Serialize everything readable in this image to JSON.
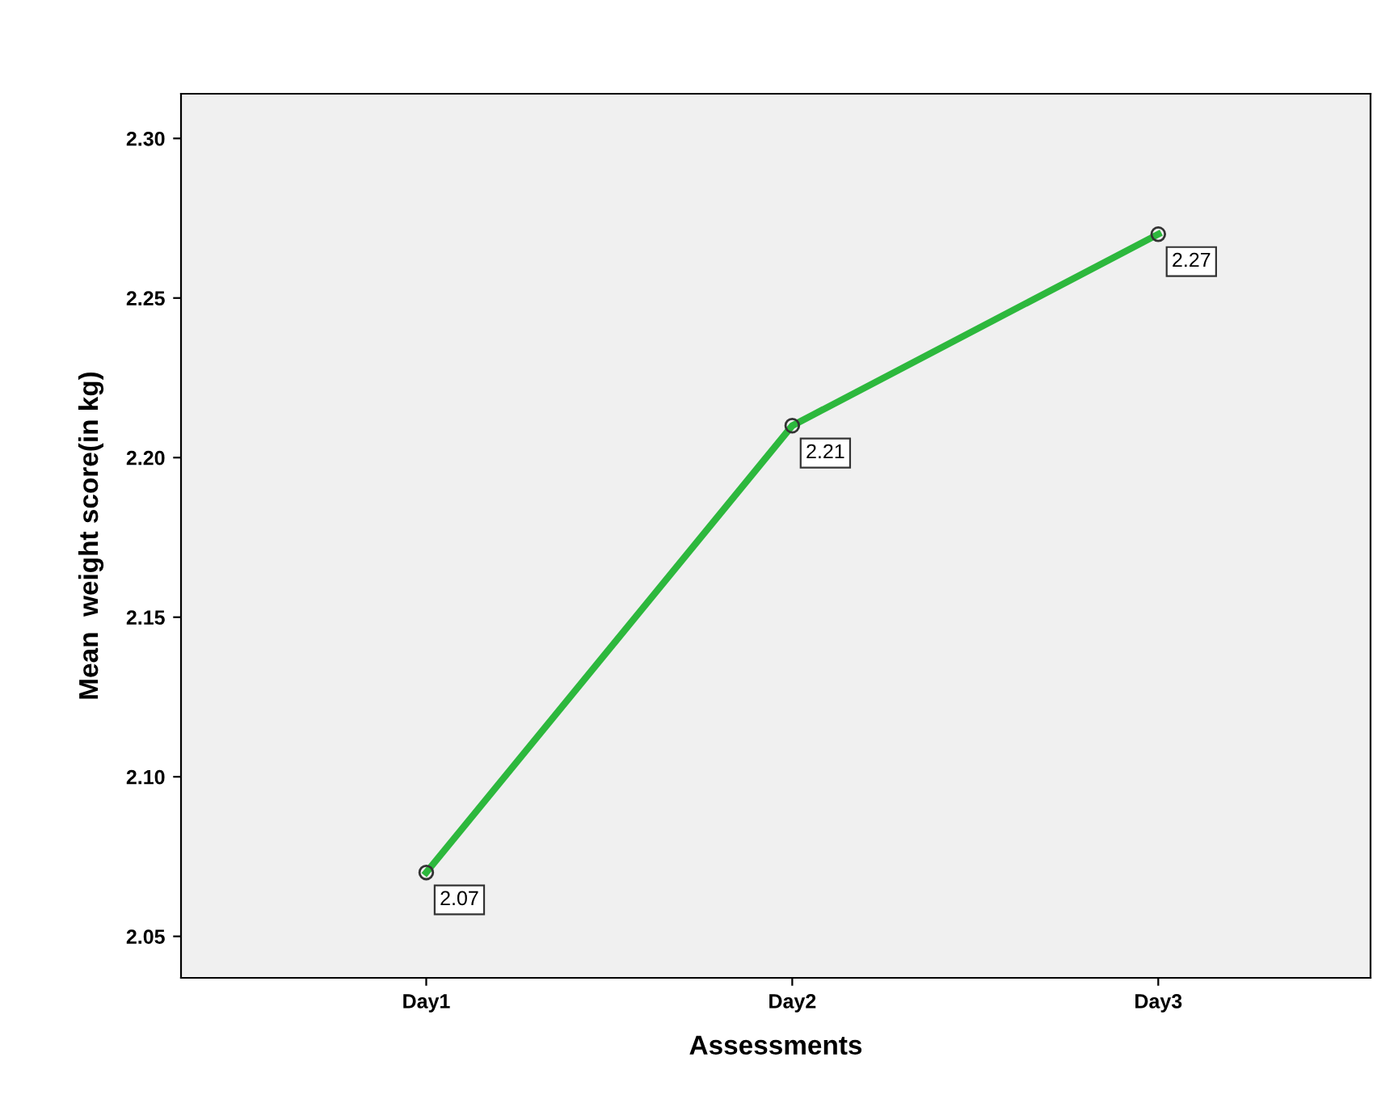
{
  "chart_data": {
    "type": "line",
    "xlabel": "Assessments",
    "ylabel": "Mean  weight score(in kg)",
    "categories": [
      "Day1",
      "Day2",
      "Day3"
    ],
    "series": [
      {
        "color": "#2db83d",
        "values": [
          2.07,
          2.21,
          2.27
        ]
      }
    ],
    "ylim": [
      2.037,
      2.314
    ],
    "yticks": [
      {
        "value": 2.05,
        "label": "2.05"
      },
      {
        "value": 2.1,
        "label": "2.10"
      },
      {
        "value": 2.15,
        "label": "2.15"
      },
      {
        "value": 2.2,
        "label": "2.20"
      },
      {
        "value": 2.25,
        "label": "2.25"
      },
      {
        "value": 2.3,
        "label": "2.30"
      }
    ],
    "marker": "circle",
    "line_style": "solid",
    "grid": false,
    "legend": false,
    "data_labels": true
  }
}
